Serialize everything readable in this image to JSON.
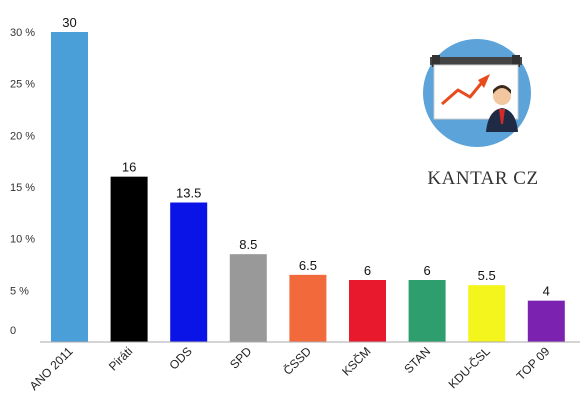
{
  "chart_data": {
    "type": "bar",
    "categories": [
      "ANO 2011",
      "Piráti",
      "ODS",
      "SPD",
      "ČSSD",
      "KSČM",
      "STAN",
      "KDU-ČSL",
      "TOP 09"
    ],
    "values": [
      30,
      16,
      13.5,
      8.5,
      6.5,
      6,
      6,
      5.5,
      4
    ],
    "value_labels": [
      "30",
      "16",
      "13.5",
      "8.5",
      "6.5",
      "6",
      "6",
      "5.5",
      "4"
    ],
    "colors": [
      "#4a9fd8",
      "#000000",
      "#0a14e6",
      "#999999",
      "#f26a3b",
      "#e8192c",
      "#2f9e6e",
      "#f5f51e",
      "#7b22b0"
    ],
    "y_ticks": [
      "0",
      "5 %",
      "10 %",
      "15 %",
      "20 %",
      "25 %",
      "30 %"
    ],
    "y_tick_values": [
      0,
      5,
      10,
      15,
      20,
      25,
      30
    ],
    "ylim": [
      0,
      30
    ],
    "grid": false,
    "title": "",
    "xlabel": "",
    "ylabel": ""
  },
  "logo": {
    "text": "KANTAR CZ",
    "icon": "presenter-growth-chart-icon",
    "circle_color": "#5ba3d9"
  }
}
